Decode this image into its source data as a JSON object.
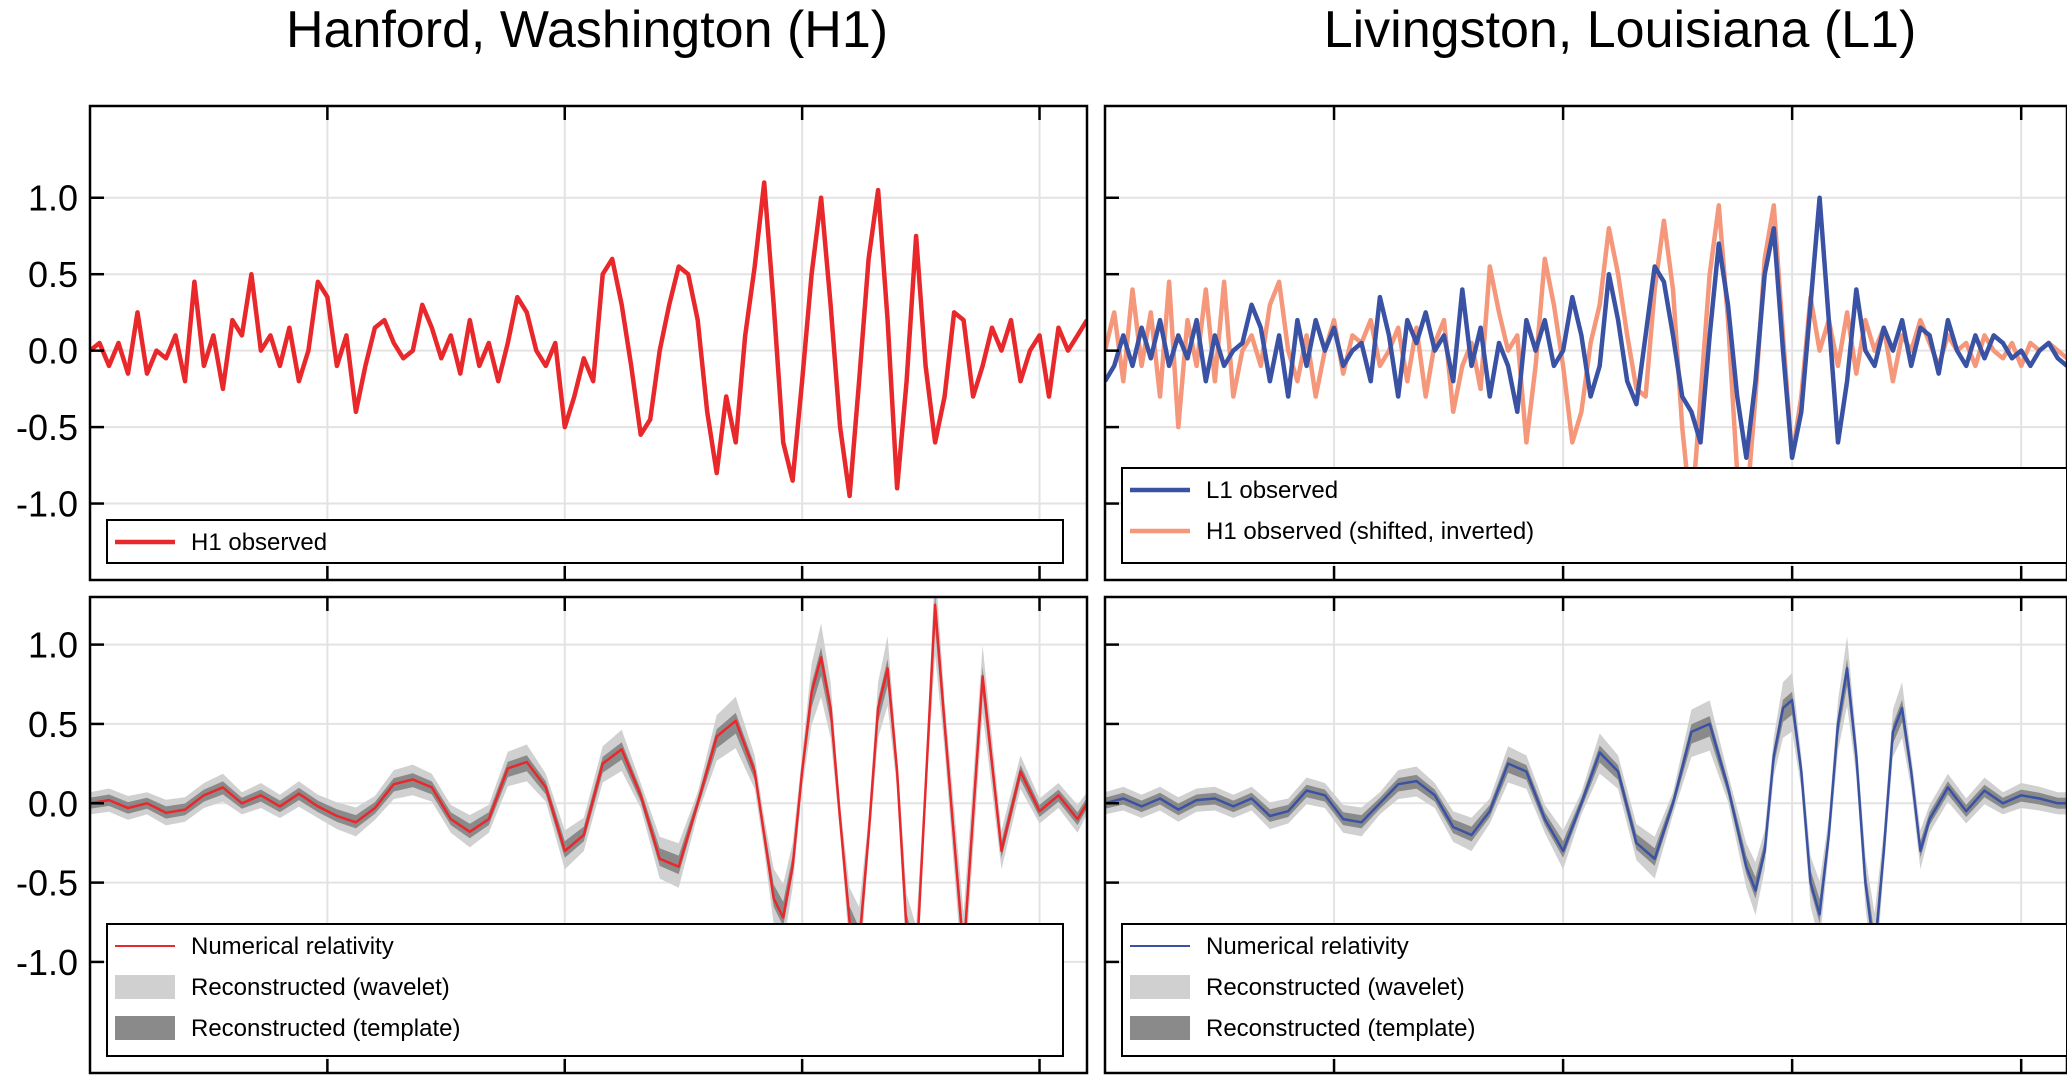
{
  "figure": {
    "titles": [
      "Hanford, Washington (H1)",
      "Livingston, Louisiana (L1)"
    ]
  },
  "colors": {
    "h1": "#e8282b",
    "l1": "#3a52a4",
    "h1_shifted": "#f5977a",
    "wavelet_band": "#d0d0d0",
    "template_band": "#8a8a8a",
    "frame": "#000000",
    "grid": "#e3e3e3"
  },
  "chart_data": [
    {
      "type": "line",
      "panel": "top-left",
      "ylim": [
        -1.5,
        1.6
      ],
      "xlim": [
        0.25,
        0.46
      ],
      "yticks": [
        -1.0,
        -0.5,
        0.0,
        0.5,
        1.0
      ],
      "ytick_labels": [
        "-1.0",
        "-0.5",
        "0.0",
        "0.5",
        "1.0"
      ],
      "xticks": [
        0.3,
        0.35,
        0.4,
        0.45
      ],
      "grid": true,
      "legend_position": "bottom",
      "legend": [
        "H1 observed"
      ],
      "series": [
        {
          "name": "H1 observed",
          "color_key": "h1",
          "x": [
            0.25,
            0.252,
            0.254,
            0.256,
            0.258,
            0.26,
            0.262,
            0.264,
            0.266,
            0.268,
            0.27,
            0.272,
            0.274,
            0.276,
            0.278,
            0.28,
            0.282,
            0.284,
            0.286,
            0.288,
            0.29,
            0.292,
            0.294,
            0.296,
            0.298,
            0.3,
            0.302,
            0.304,
            0.306,
            0.308,
            0.31,
            0.312,
            0.314,
            0.316,
            0.318,
            0.32,
            0.322,
            0.324,
            0.326,
            0.328,
            0.33,
            0.332,
            0.334,
            0.336,
            0.338,
            0.34,
            0.342,
            0.344,
            0.346,
            0.348,
            0.35,
            0.352,
            0.354,
            0.356,
            0.358,
            0.36,
            0.362,
            0.364,
            0.366,
            0.368,
            0.37,
            0.372,
            0.374,
            0.376,
            0.378,
            0.38,
            0.382,
            0.384,
            0.386,
            0.388,
            0.39,
            0.392,
            0.394,
            0.396,
            0.398,
            0.4,
            0.402,
            0.404,
            0.406,
            0.408,
            0.41,
            0.412,
            0.414,
            0.416,
            0.418,
            0.42,
            0.422,
            0.424,
            0.426,
            0.428,
            0.43,
            0.432,
            0.434,
            0.436,
            0.438,
            0.44,
            0.442,
            0.444,
            0.446,
            0.448,
            0.45,
            0.452,
            0.454,
            0.456,
            0.458,
            0.46
          ],
          "y": [
            0.0,
            0.05,
            -0.1,
            0.05,
            -0.15,
            0.25,
            -0.15,
            0.0,
            -0.05,
            0.1,
            -0.2,
            0.45,
            -0.1,
            0.1,
            -0.25,
            0.2,
            0.1,
            0.5,
            0.0,
            0.1,
            -0.1,
            0.15,
            -0.2,
            0.0,
            0.45,
            0.35,
            -0.1,
            0.1,
            -0.4,
            -0.1,
            0.15,
            0.2,
            0.05,
            -0.05,
            0.0,
            0.3,
            0.15,
            -0.05,
            0.1,
            -0.15,
            0.2,
            -0.1,
            0.05,
            -0.2,
            0.05,
            0.35,
            0.25,
            0.0,
            -0.1,
            0.05,
            -0.5,
            -0.3,
            -0.05,
            -0.2,
            0.5,
            0.6,
            0.3,
            -0.1,
            -0.55,
            -0.45,
            0.0,
            0.3,
            0.55,
            0.5,
            0.2,
            -0.4,
            -0.8,
            -0.3,
            -0.6,
            0.1,
            0.55,
            1.1,
            0.3,
            -0.6,
            -0.85,
            -0.2,
            0.5,
            1.0,
            0.3,
            -0.5,
            -0.95,
            -0.2,
            0.6,
            1.05,
            0.2,
            -0.9,
            -0.2,
            0.75,
            -0.1,
            -0.6,
            -0.3,
            0.25,
            0.2,
            -0.3,
            -0.1,
            0.15,
            0.0,
            0.2,
            -0.2,
            0.0,
            0.1,
            -0.3,
            0.15,
            0.0,
            0.1,
            0.2
          ]
        }
      ]
    },
    {
      "type": "line",
      "panel": "top-right",
      "ylim": [
        -1.5,
        1.6
      ],
      "xlim": [
        0.25,
        0.46
      ],
      "yticks": [
        -1.0,
        -0.5,
        0.0,
        0.5,
        1.0
      ],
      "xticks": [
        0.3,
        0.35,
        0.4,
        0.45
      ],
      "grid": true,
      "legend_position": "bottom",
      "legend": [
        "L1 observed",
        "H1 observed (shifted, inverted)"
      ],
      "series": [
        {
          "name": "H1 observed (shifted, inverted)",
          "color_key": "h1_shifted",
          "x": [
            0.25,
            0.252,
            0.254,
            0.256,
            0.258,
            0.26,
            0.262,
            0.264,
            0.266,
            0.268,
            0.27,
            0.272,
            0.274,
            0.276,
            0.278,
            0.28,
            0.282,
            0.284,
            0.286,
            0.288,
            0.29,
            0.292,
            0.294,
            0.296,
            0.298,
            0.3,
            0.302,
            0.304,
            0.306,
            0.308,
            0.31,
            0.312,
            0.314,
            0.316,
            0.318,
            0.32,
            0.322,
            0.324,
            0.326,
            0.328,
            0.33,
            0.332,
            0.334,
            0.336,
            0.338,
            0.34,
            0.342,
            0.344,
            0.346,
            0.348,
            0.35,
            0.352,
            0.354,
            0.356,
            0.358,
            0.36,
            0.362,
            0.364,
            0.366,
            0.368,
            0.37,
            0.372,
            0.374,
            0.376,
            0.378,
            0.38,
            0.382,
            0.384,
            0.386,
            0.388,
            0.39,
            0.392,
            0.394,
            0.396,
            0.398,
            0.4,
            0.402,
            0.404,
            0.406,
            0.408,
            0.41,
            0.412,
            0.414,
            0.416,
            0.418,
            0.42,
            0.422,
            0.424,
            0.426,
            0.428,
            0.43,
            0.432,
            0.434,
            0.436,
            0.438,
            0.44,
            0.442,
            0.444,
            0.446,
            0.448,
            0.45,
            0.452,
            0.454,
            0.456,
            0.458,
            0.46
          ],
          "y": [
            0.0,
            0.25,
            -0.2,
            0.4,
            -0.1,
            0.25,
            -0.3,
            0.45,
            -0.5,
            0.2,
            -0.1,
            0.4,
            -0.2,
            0.45,
            -0.3,
            0.0,
            0.1,
            -0.1,
            0.3,
            0.45,
            0.0,
            -0.2,
            0.1,
            -0.3,
            0.0,
            0.2,
            -0.15,
            0.1,
            0.05,
            0.2,
            -0.1,
            0.0,
            0.15,
            -0.2,
            0.15,
            -0.3,
            0.05,
            0.2,
            -0.4,
            -0.1,
            0.05,
            -0.25,
            0.55,
            0.25,
            0.0,
            0.1,
            -0.6,
            -0.1,
            0.6,
            0.3,
            -0.1,
            -0.6,
            -0.4,
            0.05,
            0.3,
            0.8,
            0.5,
            0.1,
            -0.25,
            -0.3,
            0.4,
            0.85,
            0.4,
            -0.5,
            -1.1,
            -0.3,
            0.5,
            0.95,
            0.2,
            -0.8,
            -1.05,
            -0.3,
            0.6,
            0.95,
            0.1,
            -0.7,
            -0.3,
            0.35,
            0.0,
            0.2,
            -0.1,
            0.25,
            -0.15,
            0.2,
            0.0,
            0.15,
            -0.2,
            0.1,
            0.0,
            0.2,
            0.05,
            -0.1,
            0.1,
            0.0,
            0.05,
            -0.1,
            0.1,
            0.0,
            -0.05,
            0.05,
            -0.1,
            0.05,
            0.0,
            0.05,
            0.0,
            -0.05
          ]
        },
        {
          "name": "L1 observed",
          "color_key": "l1",
          "x": [
            0.25,
            0.252,
            0.254,
            0.256,
            0.258,
            0.26,
            0.262,
            0.264,
            0.266,
            0.268,
            0.27,
            0.272,
            0.274,
            0.276,
            0.278,
            0.28,
            0.282,
            0.284,
            0.286,
            0.288,
            0.29,
            0.292,
            0.294,
            0.296,
            0.298,
            0.3,
            0.302,
            0.304,
            0.306,
            0.308,
            0.31,
            0.312,
            0.314,
            0.316,
            0.318,
            0.32,
            0.322,
            0.324,
            0.326,
            0.328,
            0.33,
            0.332,
            0.334,
            0.336,
            0.338,
            0.34,
            0.342,
            0.344,
            0.346,
            0.348,
            0.35,
            0.352,
            0.354,
            0.356,
            0.358,
            0.36,
            0.362,
            0.364,
            0.366,
            0.368,
            0.37,
            0.372,
            0.374,
            0.376,
            0.378,
            0.38,
            0.382,
            0.384,
            0.386,
            0.388,
            0.39,
            0.392,
            0.394,
            0.396,
            0.398,
            0.4,
            0.402,
            0.404,
            0.406,
            0.408,
            0.41,
            0.412,
            0.414,
            0.416,
            0.418,
            0.42,
            0.422,
            0.424,
            0.426,
            0.428,
            0.43,
            0.432,
            0.434,
            0.436,
            0.438,
            0.44,
            0.442,
            0.444,
            0.446,
            0.448,
            0.45,
            0.452,
            0.454,
            0.456,
            0.458,
            0.46
          ],
          "y": [
            -0.2,
            -0.1,
            0.1,
            -0.1,
            0.15,
            -0.05,
            0.2,
            -0.1,
            0.1,
            -0.05,
            0.2,
            -0.2,
            0.1,
            -0.1,
            0.0,
            0.05,
            0.3,
            0.15,
            -0.2,
            0.1,
            -0.3,
            0.2,
            -0.1,
            0.2,
            0.0,
            0.15,
            -0.1,
            0.0,
            0.05,
            -0.2,
            0.35,
            0.1,
            -0.3,
            0.2,
            0.05,
            0.25,
            0.0,
            0.1,
            -0.2,
            0.4,
            -0.1,
            0.15,
            -0.3,
            0.05,
            -0.1,
            -0.4,
            0.2,
            0.0,
            0.2,
            -0.1,
            0.0,
            0.35,
            0.1,
            -0.3,
            -0.1,
            0.5,
            0.2,
            -0.2,
            -0.35,
            0.1,
            0.55,
            0.45,
            0.1,
            -0.3,
            -0.4,
            -0.6,
            0.1,
            0.7,
            0.3,
            -0.3,
            -0.7,
            -0.2,
            0.5,
            0.8,
            0.0,
            -0.7,
            -0.4,
            0.3,
            1.0,
            0.2,
            -0.6,
            -0.2,
            0.4,
            0.0,
            -0.1,
            0.15,
            0.0,
            0.2,
            -0.1,
            0.15,
            0.1,
            -0.15,
            0.2,
            0.0,
            -0.1,
            0.1,
            -0.05,
            0.1,
            0.05,
            -0.05,
            0.0,
            -0.1,
            0.0,
            0.05,
            -0.05,
            -0.1
          ]
        }
      ]
    },
    {
      "type": "line",
      "panel": "bottom-left",
      "ylim": [
        -1.7,
        1.3
      ],
      "xlim": [
        0.25,
        0.46
      ],
      "yticks": [
        -1.0,
        -0.5,
        0.0,
        0.5,
        1.0
      ],
      "ytick_labels": [
        "-1.0",
        "-0.5",
        "0.0",
        "0.5",
        "1.0"
      ],
      "xticks": [
        0.3,
        0.35,
        0.4,
        0.45
      ],
      "grid": true,
      "legend_position": "bottom",
      "legend": [
        "Numerical relativity",
        "Reconstructed (wavelet)",
        "Reconstructed (template)"
      ],
      "series": [
        {
          "name": "Numerical relativity",
          "color_key": "h1",
          "x": [
            0.25,
            0.254,
            0.258,
            0.262,
            0.266,
            0.27,
            0.274,
            0.278,
            0.282,
            0.286,
            0.29,
            0.294,
            0.298,
            0.302,
            0.306,
            0.31,
            0.314,
            0.318,
            0.322,
            0.326,
            0.33,
            0.334,
            0.338,
            0.342,
            0.346,
            0.35,
            0.354,
            0.358,
            0.362,
            0.366,
            0.37,
            0.374,
            0.378,
            0.382,
            0.386,
            0.39,
            0.392,
            0.394,
            0.396,
            0.398,
            0.4,
            0.402,
            0.404,
            0.406,
            0.408,
            0.41,
            0.412,
            0.414,
            0.416,
            0.418,
            0.42,
            0.422,
            0.424,
            0.426,
            0.428,
            0.43,
            0.434,
            0.438,
            0.442,
            0.446,
            0.45,
            0.454,
            0.458,
            0.46
          ],
          "y": [
            0.0,
            0.02,
            -0.03,
            0.0,
            -0.06,
            -0.04,
            0.05,
            0.1,
            0.0,
            0.05,
            -0.02,
            0.06,
            -0.02,
            -0.08,
            -0.12,
            -0.03,
            0.12,
            0.15,
            0.1,
            -0.1,
            -0.18,
            -0.1,
            0.22,
            0.26,
            0.1,
            -0.3,
            -0.2,
            0.25,
            0.34,
            0.05,
            -0.35,
            -0.4,
            0.0,
            0.42,
            0.52,
            0.2,
            -0.2,
            -0.6,
            -0.72,
            -0.4,
            0.2,
            0.7,
            0.92,
            0.6,
            -0.1,
            -0.75,
            -0.9,
            -0.2,
            0.6,
            0.85,
            0.2,
            -0.8,
            -1.05,
            0.1,
            1.25,
            0.5,
            -0.95,
            0.8,
            -0.3,
            0.2,
            -0.05,
            0.05,
            -0.1,
            0.0
          ]
        }
      ]
    },
    {
      "type": "line",
      "panel": "bottom-right",
      "ylim": [
        -1.7,
        1.3
      ],
      "xlim": [
        0.25,
        0.46
      ],
      "yticks": [
        -1.0,
        -0.5,
        0.0,
        0.5,
        1.0
      ],
      "xticks": [
        0.3,
        0.35,
        0.4,
        0.45
      ],
      "grid": true,
      "legend_position": "bottom",
      "legend": [
        "Numerical relativity",
        "Reconstructed (wavelet)",
        "Reconstructed (template)"
      ],
      "series": [
        {
          "name": "Numerical relativity",
          "color_key": "l1",
          "x": [
            0.25,
            0.254,
            0.258,
            0.262,
            0.266,
            0.27,
            0.274,
            0.278,
            0.282,
            0.286,
            0.29,
            0.294,
            0.298,
            0.302,
            0.306,
            0.31,
            0.314,
            0.318,
            0.322,
            0.326,
            0.33,
            0.334,
            0.338,
            0.342,
            0.346,
            0.35,
            0.354,
            0.358,
            0.362,
            0.366,
            0.37,
            0.374,
            0.378,
            0.382,
            0.386,
            0.39,
            0.392,
            0.394,
            0.396,
            0.398,
            0.4,
            0.402,
            0.404,
            0.406,
            0.408,
            0.41,
            0.412,
            0.414,
            0.416,
            0.418,
            0.42,
            0.422,
            0.424,
            0.426,
            0.428,
            0.43,
            0.434,
            0.438,
            0.442,
            0.446,
            0.45,
            0.454,
            0.458,
            0.46
          ],
          "y": [
            0.0,
            0.03,
            -0.02,
            0.03,
            -0.04,
            0.02,
            0.03,
            -0.02,
            0.03,
            -0.08,
            -0.05,
            0.08,
            0.05,
            -0.1,
            -0.12,
            0.0,
            0.12,
            0.14,
            0.05,
            -0.15,
            -0.2,
            -0.05,
            0.25,
            0.2,
            -0.1,
            -0.3,
            0.0,
            0.32,
            0.2,
            -0.25,
            -0.35,
            0.0,
            0.45,
            0.5,
            0.1,
            -0.4,
            -0.55,
            -0.3,
            0.3,
            0.6,
            0.65,
            0.2,
            -0.5,
            -0.7,
            -0.2,
            0.5,
            0.85,
            0.3,
            -0.5,
            -0.95,
            -0.3,
            0.45,
            0.6,
            0.2,
            -0.3,
            -0.1,
            0.1,
            -0.05,
            0.08,
            0.0,
            0.05,
            0.03,
            0.0,
            0.0
          ]
        }
      ]
    }
  ]
}
